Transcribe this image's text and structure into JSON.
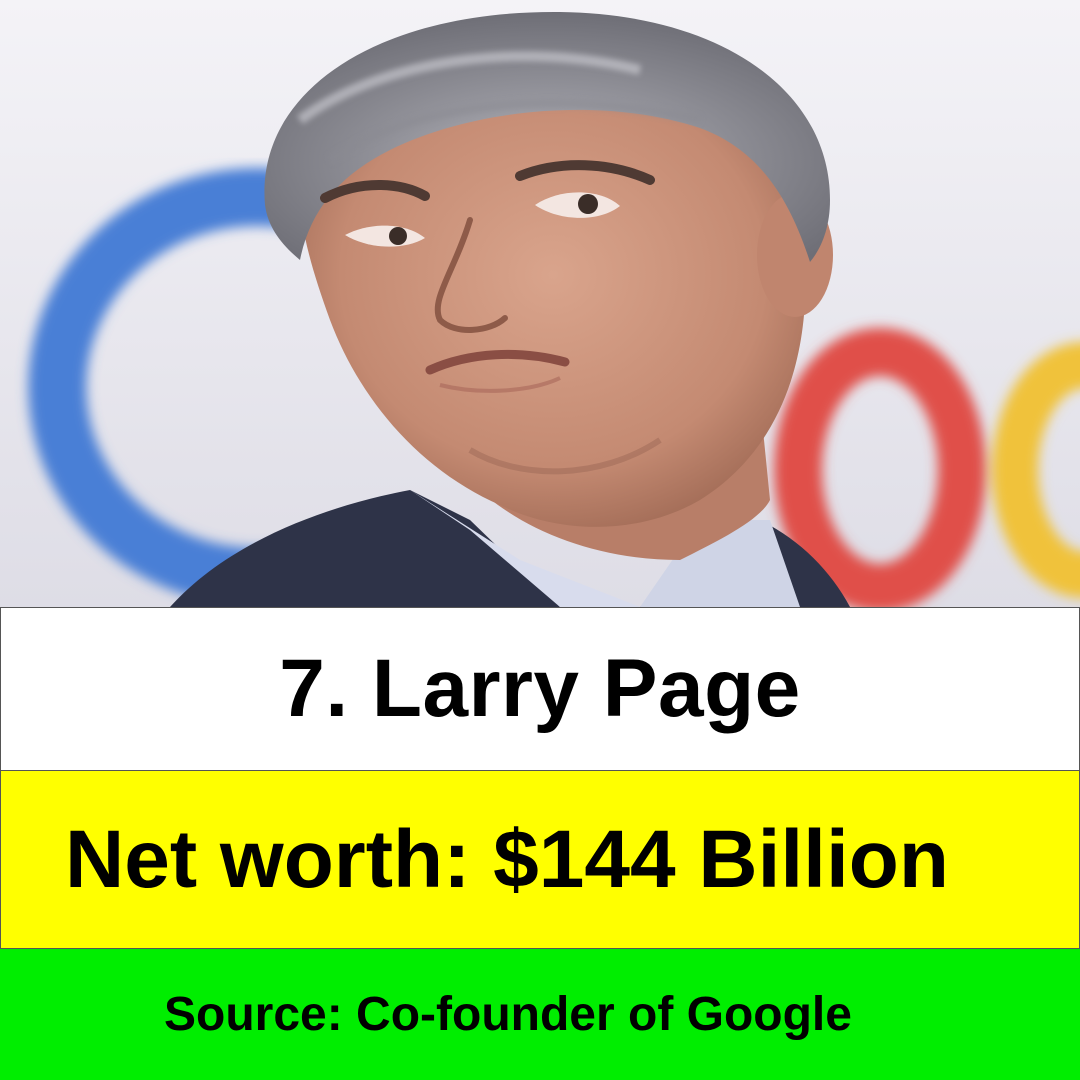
{
  "photo": {
    "subject": "portrait-photo",
    "logo_colors": {
      "blue": "#4a7fd6",
      "red": "#e0504a",
      "yellow": "#f0c23a"
    }
  },
  "name_band": {
    "text": "7. Larry Page",
    "background": "#ffffff"
  },
  "worth_band": {
    "text": "Net worth: $144 Billion",
    "background": "#ffff00"
  },
  "source_band": {
    "text": "Source: Co-founder of Google",
    "background": "#00ee00"
  }
}
